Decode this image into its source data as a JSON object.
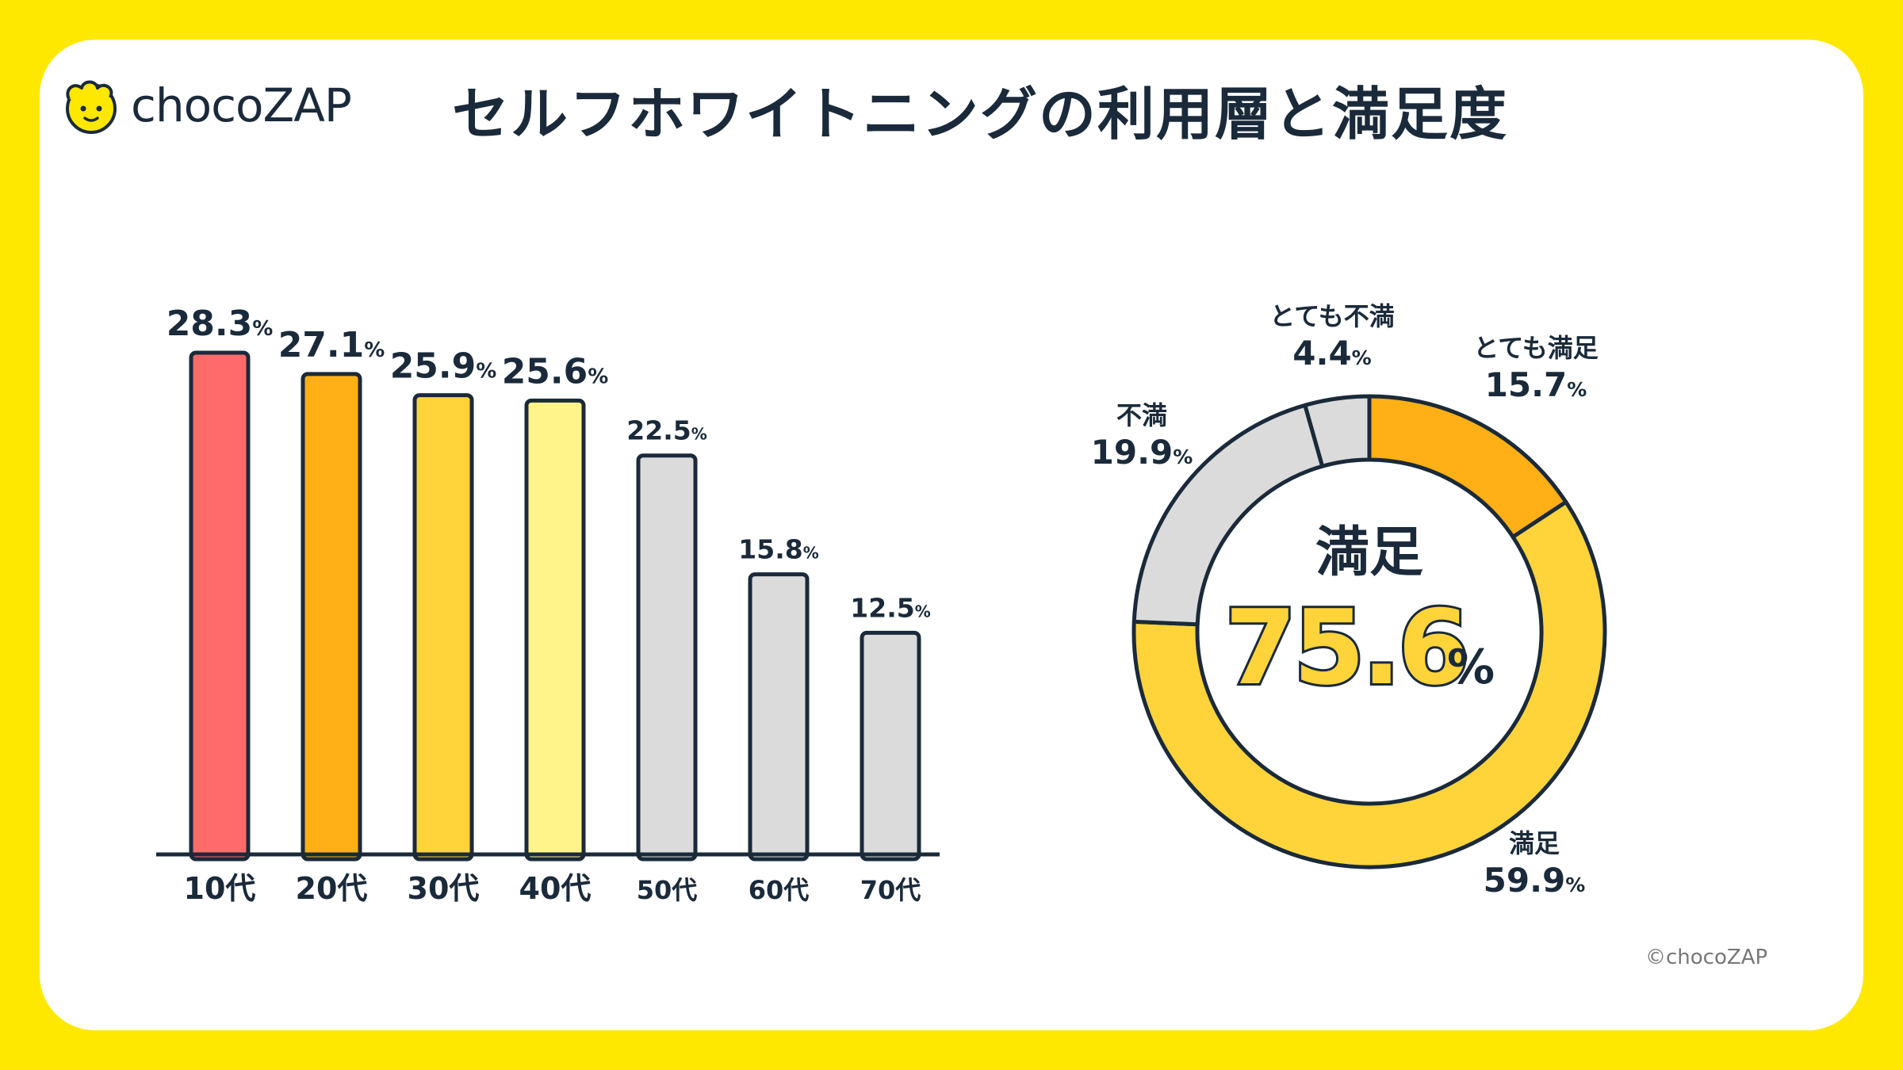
{
  "brand": {
    "logo_text": "chocoZAP",
    "copyright": "©chocoZAP"
  },
  "title": "セルフホワイトニングの利用層と満足度",
  "colors": {
    "background": "#FFE800",
    "card": "#FFFFFF",
    "outline": "#1a2a3a",
    "red": "#FF6B6B",
    "orange": "#FFB016",
    "yellow": "#FFD43B",
    "light_yellow": "#FFF48A",
    "gray": "#DBDBDB"
  },
  "chart_data": [
    {
      "type": "bar",
      "categories": [
        "10代",
        "20代",
        "30代",
        "40代",
        "50代",
        "60代",
        "70代"
      ],
      "values": [
        28.3,
        27.1,
        25.9,
        25.6,
        22.5,
        15.8,
        12.5
      ],
      "value_labels": [
        "28.3",
        "27.1",
        "25.9",
        "25.6",
        "22.5",
        "15.8",
        "12.5"
      ],
      "unit": "%",
      "bar_colors": [
        "#FF6B6B",
        "#FFB016",
        "#FFD43B",
        "#FFF48A",
        "#DBDBDB",
        "#DBDBDB",
        "#DBDBDB"
      ],
      "ylim": [
        0,
        28.3
      ],
      "grid": false,
      "xlabel": "",
      "ylabel": ""
    },
    {
      "type": "pie",
      "donut": true,
      "categories": [
        "とても満足",
        "満足",
        "不満",
        "とても不満"
      ],
      "values": [
        15.7,
        59.9,
        19.9,
        4.4
      ],
      "value_labels": [
        "15.7",
        "59.9",
        "19.9",
        "4.4"
      ],
      "unit": "%",
      "colors": [
        "#FFB016",
        "#FFD43B",
        "#DBDBDB",
        "#DBDBDB"
      ],
      "center_label": "満足",
      "center_value": "75.6",
      "center_unit": "%"
    }
  ]
}
